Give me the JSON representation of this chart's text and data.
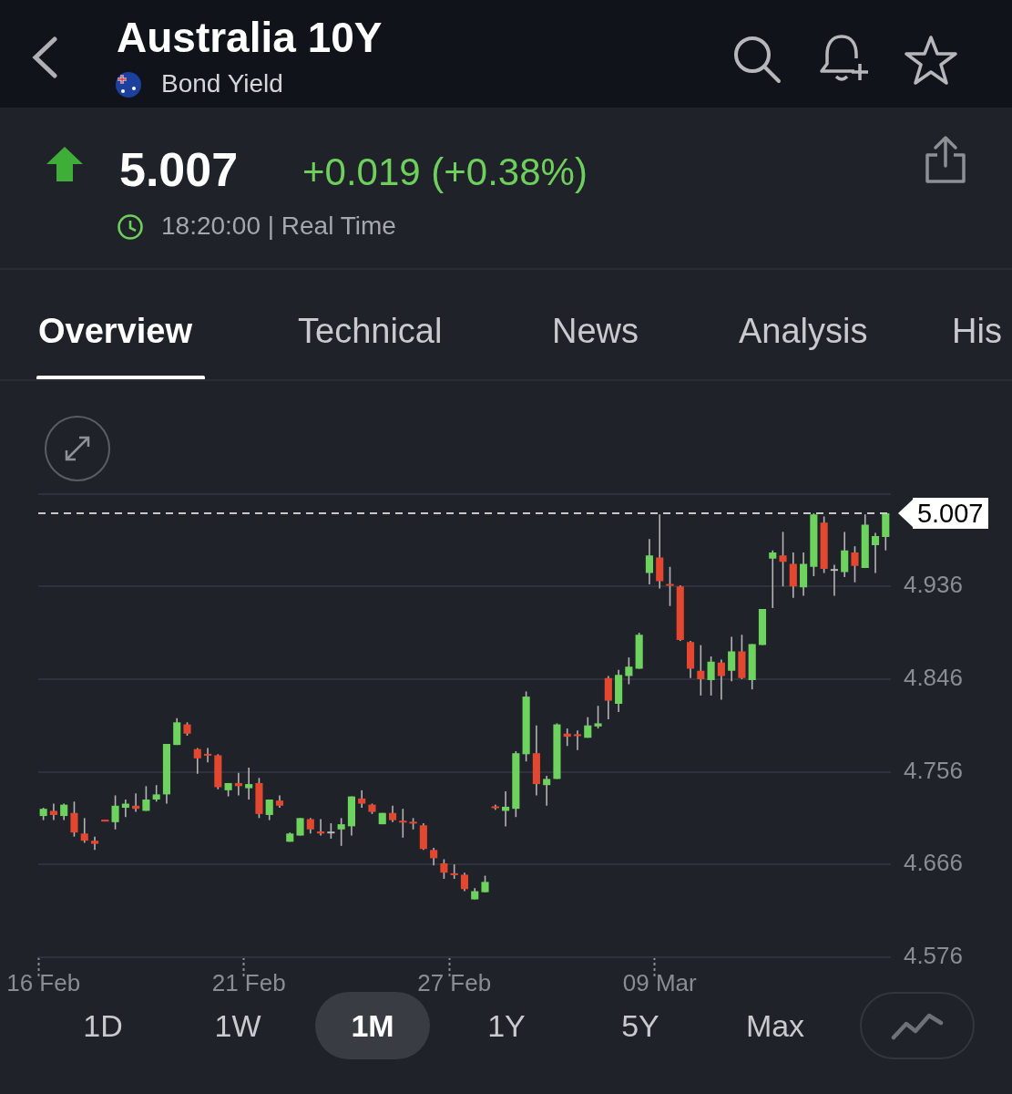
{
  "chart_data": {
    "type": "candlestick",
    "title": "Australia 10Y",
    "subtitle": "Bond Yield",
    "annotations": [
      "5.007",
      "+0.019 (+0.38%)",
      "18:20:00 | Real Time",
      "Overview",
      "Technical",
      "News",
      "Analysis",
      "His",
      "1D",
      "1W",
      "1M",
      "1Y",
      "5Y",
      "Max"
    ],
    "categories": [
      "16 Feb",
      null,
      null,
      null,
      null,
      null,
      null,
      null,
      null,
      null,
      null,
      null,
      null,
      null,
      null,
      null,
      null,
      null,
      null,
      null,
      "21 Feb",
      null,
      null,
      null,
      null,
      null,
      null,
      null,
      null,
      null,
      null,
      null,
      null,
      null,
      null,
      null,
      null,
      null,
      null,
      null,
      "27 Feb",
      null,
      null,
      null,
      null,
      null,
      null,
      null,
      null,
      null,
      null,
      null,
      null,
      null,
      null,
      null,
      null,
      null,
      null,
      null,
      "09 Mar",
      null,
      null,
      null,
      null,
      null,
      null,
      null,
      null,
      null,
      null,
      null,
      null,
      null,
      null,
      null,
      null,
      null,
      null,
      null,
      null,
      null,
      null
    ],
    "ohlc": [
      [
        4.713,
        4.721,
        4.709,
        4.72
      ],
      [
        4.718,
        4.725,
        4.709,
        4.714
      ],
      [
        4.713,
        4.725,
        4.709,
        4.724
      ],
      [
        4.716,
        4.727,
        4.693,
        4.697
      ],
      [
        4.696,
        4.711,
        4.687,
        4.689
      ],
      [
        4.689,
        4.693,
        4.68,
        4.686
      ],
      [
        4.709,
        4.709,
        4.708,
        4.708
      ],
      [
        4.707,
        4.733,
        4.7,
        4.723
      ],
      [
        4.721,
        4.729,
        4.712,
        4.725
      ],
      [
        4.723,
        4.735,
        4.717,
        4.72
      ],
      [
        4.718,
        4.742,
        4.718,
        4.729
      ],
      [
        4.729,
        4.743,
        4.727,
        4.734
      ],
      [
        4.734,
        4.783,
        4.725,
        4.783
      ],
      [
        4.782,
        4.808,
        4.782,
        4.804
      ],
      [
        4.802,
        4.804,
        4.791,
        4.793
      ],
      [
        4.778,
        4.779,
        4.754,
        4.769
      ],
      [
        4.773,
        4.779,
        4.765,
        4.772
      ],
      [
        4.772,
        4.773,
        4.739,
        4.741
      ],
      [
        4.738,
        4.745,
        4.732,
        4.745
      ],
      [
        4.745,
        4.755,
        4.733,
        4.742
      ],
      [
        4.74,
        4.76,
        4.729,
        4.744
      ],
      [
        4.745,
        4.75,
        4.711,
        4.715
      ],
      [
        4.714,
        4.729,
        4.709,
        4.729
      ],
      [
        4.728,
        4.733,
        4.721,
        4.723
      ],
      [
        4.688,
        4.697,
        4.688,
        4.696
      ],
      [
        4.694,
        4.711,
        4.694,
        4.711
      ],
      [
        4.71,
        4.711,
        4.696,
        4.7
      ],
      [
        4.698,
        4.71,
        4.694,
        4.696
      ],
      [
        4.697,
        4.706,
        4.691,
        4.697
      ],
      [
        4.7,
        4.711,
        4.684,
        4.705
      ],
      [
        4.703,
        4.732,
        4.694,
        4.732
      ],
      [
        4.73,
        4.738,
        4.721,
        4.725
      ],
      [
        4.724,
        4.725,
        4.715,
        4.717
      ],
      [
        4.705,
        4.716,
        4.705,
        4.716
      ],
      [
        4.716,
        4.723,
        4.707,
        4.709
      ],
      [
        4.708,
        4.72,
        4.692,
        4.707
      ],
      [
        4.707,
        4.711,
        4.7,
        4.706
      ],
      [
        4.704,
        4.706,
        4.68,
        4.681
      ],
      [
        4.68,
        4.682,
        4.665,
        4.672
      ],
      [
        4.667,
        4.671,
        4.652,
        4.658
      ],
      [
        4.657,
        4.666,
        4.652,
        4.656
      ],
      [
        4.656,
        4.658,
        4.64,
        4.642
      ],
      [
        4.632,
        4.643,
        4.632,
        4.64
      ],
      [
        4.639,
        4.655,
        4.639,
        4.649
      ],
      [
        4.722,
        4.724,
        4.719,
        4.721
      ],
      [
        4.718,
        4.737,
        4.703,
        4.722
      ],
      [
        4.72,
        4.776,
        4.712,
        4.774
      ],
      [
        4.773,
        4.834,
        4.766,
        4.829
      ],
      [
        4.774,
        4.801,
        4.733,
        4.744
      ],
      [
        4.743,
        4.752,
        4.723,
        4.749
      ],
      [
        4.749,
        4.803,
        4.749,
        4.802
      ],
      [
        4.793,
        4.798,
        4.781,
        4.79
      ],
      [
        4.792,
        4.796,
        4.777,
        4.791
      ],
      [
        4.789,
        4.809,
        4.789,
        4.801
      ],
      [
        4.8,
        4.82,
        4.798,
        4.803
      ],
      [
        4.847,
        4.849,
        4.807,
        4.825
      ],
      [
        4.822,
        4.855,
        4.814,
        4.85
      ],
      [
        4.849,
        4.867,
        4.841,
        4.858
      ],
      [
        4.856,
        4.891,
        4.856,
        4.889
      ],
      [
        4.949,
        4.982,
        4.938,
        4.966
      ],
      [
        4.964,
        5.006,
        4.934,
        4.941
      ],
      [
        4.938,
        4.955,
        4.917,
        4.937
      ],
      [
        4.936,
        4.937,
        4.883,
        4.884
      ],
      [
        4.882,
        4.883,
        4.847,
        4.856
      ],
      [
        4.854,
        4.879,
        4.83,
        4.846
      ],
      [
        4.845,
        4.868,
        4.83,
        4.863
      ],
      [
        4.862,
        4.865,
        4.826,
        4.849
      ],
      [
        4.854,
        4.887,
        4.844,
        4.873
      ],
      [
        4.873,
        4.889,
        4.846,
        4.847
      ],
      [
        4.845,
        4.88,
        4.836,
        4.88
      ],
      [
        4.879,
        4.914,
        4.879,
        4.914
      ],
      [
        4.963,
        4.971,
        4.915,
        4.969
      ],
      [
        4.966,
        4.989,
        4.936,
        4.96
      ],
      [
        4.958,
        4.969,
        4.925,
        4.936
      ],
      [
        4.935,
        4.969,
        4.927,
        4.958
      ],
      [
        4.955,
        5.007,
        4.946,
        5.006
      ],
      [
        4.998,
        5.004,
        4.949,
        4.953
      ],
      [
        4.952,
        4.957,
        4.927,
        4.952
      ],
      [
        4.95,
        4.989,
        4.945,
        4.971
      ],
      [
        4.969,
        4.975,
        4.94,
        4.956
      ],
      [
        4.954,
        5.006,
        4.954,
        4.996
      ],
      [
        4.976,
        4.988,
        4.949,
        4.985
      ],
      [
        4.984,
        5.007,
        4.971,
        5.007
      ]
    ],
    "colors": [
      "#6dd35e",
      "#e4472f",
      "#6dd35e",
      "#e4472f",
      "#e4472f",
      "#e4472f",
      "#e4472f",
      "#6dd35e",
      "#6dd35e",
      "#e4472f",
      "#6dd35e",
      "#6dd35e",
      "#6dd35e",
      "#6dd35e",
      "#e4472f",
      "#e4472f",
      "#e4472f",
      "#e4472f",
      "#6dd35e",
      "#e4472f",
      "#6dd35e",
      "#e4472f",
      "#6dd35e",
      "#e4472f",
      "#6dd35e",
      "#6dd35e",
      "#e4472f",
      "#e4472f",
      "#b8b8b8",
      "#6dd35e",
      "#6dd35e",
      "#e4472f",
      "#e4472f",
      "#6dd35e",
      "#e4472f",
      "#e4472f",
      "#e4472f",
      "#e4472f",
      "#e4472f",
      "#e4472f",
      "#e4472f",
      "#e4472f",
      "#6dd35e",
      "#6dd35e",
      "#e4472f",
      "#6dd35e",
      "#6dd35e",
      "#6dd35e",
      "#e4472f",
      "#6dd35e",
      "#6dd35e",
      "#e4472f",
      "#e4472f",
      "#6dd35e",
      "#6dd35e",
      "#e4472f",
      "#6dd35e",
      "#6dd35e",
      "#6dd35e",
      "#6dd35e",
      "#e4472f",
      "#e4472f",
      "#e4472f",
      "#e4472f",
      "#e4472f",
      "#6dd35e",
      "#e4472f",
      "#6dd35e",
      "#e4472f",
      "#6dd35e",
      "#6dd35e",
      "#6dd35e",
      "#e4472f",
      "#e4472f",
      "#6dd35e",
      "#6dd35e",
      "#e4472f",
      "#b8b8b8",
      "#6dd35e",
      "#e4472f",
      "#6dd35e",
      "#6dd35e",
      "#6dd35e"
    ],
    "ylim": [
      4.576,
      5.026
    ],
    "yticks": [
      4.576,
      4.666,
      4.756,
      4.846,
      4.936,
      {
        "value": 5.026,
        "label": null
      }
    ],
    "grid": "y",
    "legend": false,
    "ref_lines": [
      {
        "axis": "y",
        "value": 5.007,
        "label": "5.007",
        "color": "#c8c8c8",
        "line_style": "dashed"
      }
    ]
  }
}
